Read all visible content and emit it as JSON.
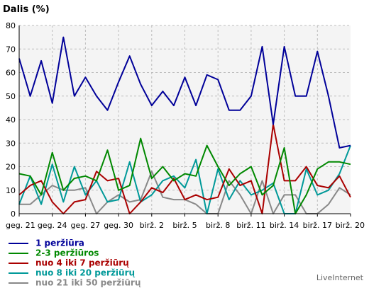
{
  "chart_data": {
    "type": "line",
    "title": "",
    "ylabel": "Dalis (%)",
    "xlabel": "",
    "ylim": [
      0,
      80
    ],
    "y_ticks": [
      0,
      10,
      20,
      30,
      40,
      50,
      60,
      70,
      80
    ],
    "x_ticks": [
      "geg. 21",
      "geg. 24",
      "geg. 27",
      "geg. 30",
      "birž. 2",
      "birž. 5",
      "birž. 8",
      "birž. 11",
      "birž. 14",
      "birž. 17",
      "birž. 20"
    ],
    "grid": true,
    "series": [
      {
        "name": "1 peržiūra",
        "color": "#000099",
        "values": [
          66,
          50,
          65,
          47,
          75,
          50,
          58,
          50,
          44,
          56,
          67,
          55,
          46,
          52,
          46,
          58,
          46,
          59,
          57,
          44,
          44,
          50,
          71,
          38,
          71,
          50,
          50,
          69,
          50,
          28,
          29
        ]
      },
      {
        "name": "2-3 peržiūros",
        "color": "#008800",
        "values": [
          17,
          16,
          8,
          26,
          10,
          15,
          16,
          14,
          27,
          10,
          12,
          32,
          15,
          20,
          14,
          17,
          16,
          29,
          20,
          12,
          17,
          20,
          8,
          12,
          28,
          0,
          8,
          19,
          22,
          22,
          21
        ]
      },
      {
        "name": "nuo 4 iki 7 peržiūrų",
        "color": "#aa0000",
        "values": [
          8,
          12,
          14,
          5,
          0,
          5,
          6,
          18,
          14,
          15,
          0,
          5,
          11,
          9,
          15,
          6,
          8,
          6,
          7,
          19,
          12,
          14,
          0,
          38,
          14,
          14,
          20,
          12,
          11,
          16,
          7
        ]
      },
      {
        "name": "nuo 8 iki 20 peržiūrų",
        "color": "#009999",
        "values": [
          4,
          16,
          4,
          21,
          5,
          20,
          8,
          14,
          5,
          6,
          22,
          5,
          8,
          14,
          16,
          11,
          23,
          0,
          19,
          6,
          14,
          8,
          10,
          13,
          0,
          0,
          19,
          8,
          10,
          17,
          29
        ]
      },
      {
        "name": "nuo 21 iki 50 peržiūrų",
        "color": "#888888",
        "values": [
          4,
          4,
          8,
          12,
          10,
          10,
          11,
          0,
          5,
          8,
          5,
          6,
          18,
          7,
          6,
          6,
          4,
          0,
          0,
          14,
          8,
          0,
          14,
          0,
          8,
          8,
          0,
          0,
          4,
          11,
          8
        ]
      }
    ]
  },
  "brand": "LiveInternet"
}
